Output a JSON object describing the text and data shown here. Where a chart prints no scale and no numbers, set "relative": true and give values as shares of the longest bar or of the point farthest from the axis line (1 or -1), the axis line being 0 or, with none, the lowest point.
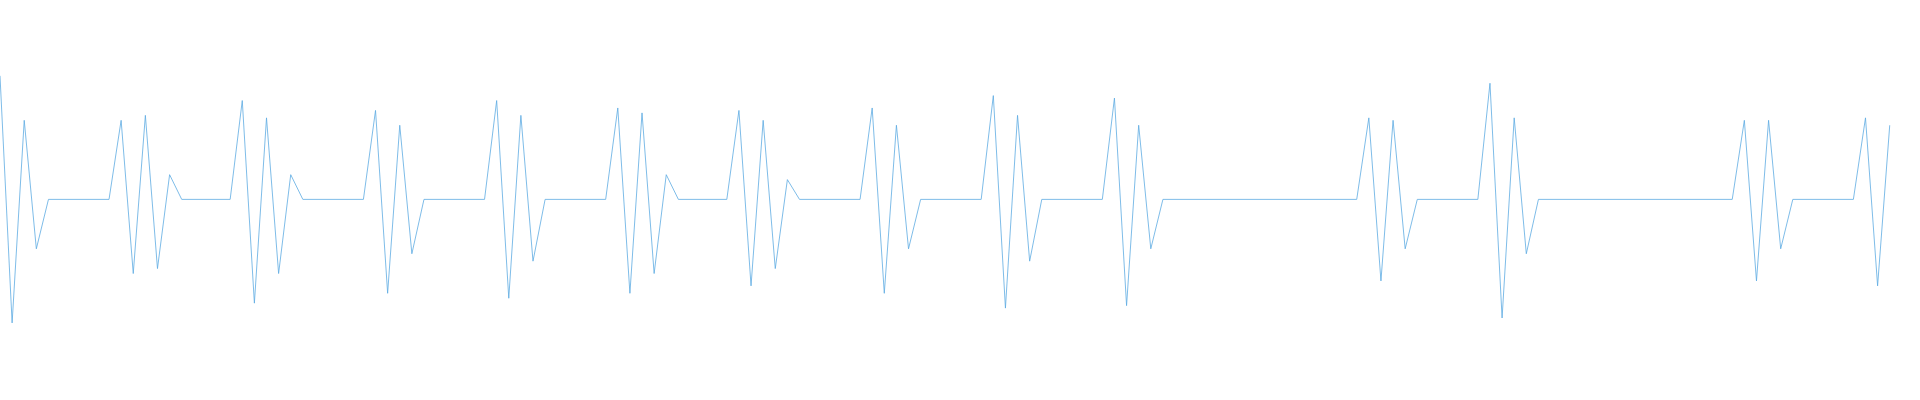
{
  "chart_data": {
    "type": "line",
    "relative": true,
    "categories": [
      null,
      null,
      null,
      null,
      null,
      null,
      null,
      null,
      null,
      null,
      null,
      null,
      null,
      null,
      null,
      null,
      null,
      null,
      null,
      null,
      null,
      null,
      null,
      null,
      null,
      null,
      null,
      null,
      null,
      null,
      null,
      null,
      null,
      null,
      null,
      null,
      null,
      null,
      null,
      null,
      null,
      null,
      null,
      null,
      null,
      null,
      null,
      null,
      null,
      null,
      null,
      null,
      null,
      null,
      null,
      null,
      null,
      null,
      null,
      null,
      null,
      null,
      null,
      null,
      null,
      null,
      null,
      null,
      null,
      null,
      null,
      null,
      null,
      null,
      null,
      null,
      null,
      null,
      null,
      null,
      null,
      null,
      null,
      null,
      null,
      null,
      null,
      null,
      null,
      null,
      null,
      null,
      null,
      null,
      null,
      null,
      null,
      null,
      null,
      null,
      null,
      null,
      null,
      null,
      null,
      null,
      null,
      null,
      null,
      null,
      null,
      null,
      null,
      null,
      null,
      null,
      null,
      null,
      null,
      null,
      null,
      null,
      null,
      null,
      null,
      null,
      null,
      null,
      null,
      null,
      null,
      null,
      null,
      null,
      null,
      null,
      null,
      null,
      null,
      null,
      null,
      null,
      null,
      null,
      null,
      null,
      null,
      null,
      null,
      null,
      null,
      null,
      null,
      null,
      null,
      null,
      null
    ],
    "series": [
      {
        "color": "#5dabe2",
        "values": [
          1.0,
          0.0,
          0.82,
          0.3,
          0.5,
          0.5,
          0.5,
          0.5,
          0.5,
          0.5,
          0.82,
          0.2,
          0.84,
          0.22,
          0.6,
          0.5,
          0.5,
          0.5,
          0.5,
          0.5,
          0.9,
          0.08,
          0.83,
          0.2,
          0.6,
          0.5,
          0.5,
          0.5,
          0.5,
          0.5,
          0.5,
          0.86,
          0.12,
          0.8,
          0.28,
          0.5,
          0.5,
          0.5,
          0.5,
          0.5,
          0.5,
          0.9,
          0.1,
          0.84,
          0.25,
          0.5,
          0.5,
          0.5,
          0.5,
          0.5,
          0.5,
          0.87,
          0.12,
          0.85,
          0.2,
          0.6,
          0.5,
          0.5,
          0.5,
          0.5,
          0.5,
          0.86,
          0.15,
          0.82,
          0.22,
          0.58,
          0.5,
          0.5,
          0.5,
          0.5,
          0.5,
          0.5,
          0.87,
          0.12,
          0.8,
          0.3,
          0.5,
          0.5,
          0.5,
          0.5,
          0.5,
          0.5,
          0.92,
          0.06,
          0.84,
          0.25,
          0.5,
          0.5,
          0.5,
          0.5,
          0.5,
          0.5,
          0.91,
          0.07,
          0.8,
          0.3,
          0.5,
          0.5,
          0.5,
          0.5,
          0.5,
          0.5,
          0.5,
          0.5,
          0.5,
          0.5,
          0.5,
          0.5,
          0.5,
          0.5,
          0.5,
          0.5,
          0.5,
          0.83,
          0.17,
          0.82,
          0.3,
          0.5,
          0.5,
          0.5,
          0.5,
          0.5,
          0.5,
          0.97,
          0.02,
          0.83,
          0.28,
          0.5,
          0.5,
          0.5,
          0.5,
          0.5,
          0.5,
          0.5,
          0.5,
          0.5,
          0.5,
          0.5,
          0.5,
          0.5,
          0.5,
          0.5,
          0.5,
          0.5,
          0.82,
          0.17,
          0.82,
          0.3,
          0.5,
          0.5,
          0.5,
          0.5,
          0.5,
          0.5,
          0.83,
          0.15,
          0.8
        ]
      }
    ]
  }
}
